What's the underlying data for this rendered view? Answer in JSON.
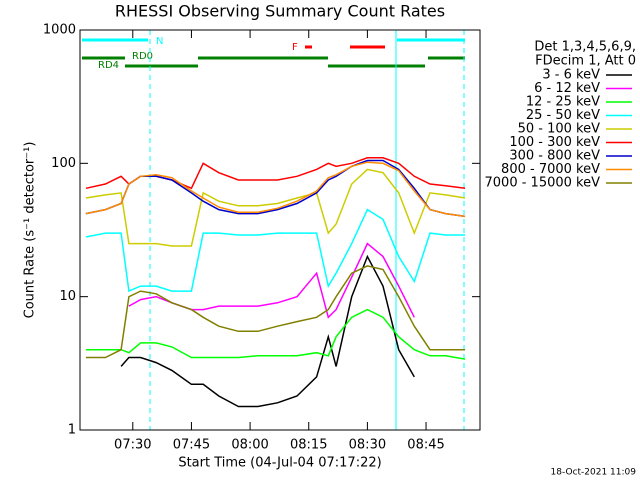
{
  "chart_data": {
    "type": "line",
    "title": "RHESSI Observing Summary Count Rates",
    "xlabel": "Start Time (04-Jul-04 07:17:22)",
    "ylabel": "Count Rate (s⁻¹ detector⁻¹)",
    "legend_title": [
      "Det 1,3,4,5,6,9,",
      "FDecim 1, Att 0"
    ],
    "timestamp": "18-Oct-2021 11:09",
    "flags": [
      "N",
      "RD0",
      "RD4",
      "F"
    ],
    "log_y": true,
    "xlim": [
      436.5,
      538.8
    ],
    "xticks": [
      {
        "value": 450,
        "label": "07:30"
      },
      {
        "value": 465,
        "label": "07:45"
      },
      {
        "value": 480,
        "label": "08:00"
      },
      {
        "value": 495,
        "label": "08:15"
      },
      {
        "value": 510,
        "label": "08:30"
      },
      {
        "value": 525,
        "label": "08:45"
      }
    ],
    "ylim": [
      1,
      1000
    ],
    "yticks": [
      1,
      10,
      100,
      1000
    ],
    "x": [
      438,
      443,
      447,
      449,
      452,
      456,
      460,
      465,
      468,
      472,
      477,
      482,
      487,
      492,
      497,
      500,
      502,
      506,
      510,
      514,
      518,
      522,
      526,
      530,
      535
    ],
    "series": [
      {
        "name": "3 - 6 keV",
        "color": "#000000",
        "values": [
          null,
          null,
          3,
          3.5,
          3.5,
          3.2,
          2.8,
          2.2,
          2.2,
          1.8,
          1.5,
          1.5,
          1.6,
          1.8,
          2.5,
          5,
          3,
          10,
          20,
          12,
          4,
          2.5,
          null,
          null,
          null
        ]
      },
      {
        "name": "6 - 12 keV",
        "color": "#ff00ff",
        "values": [
          null,
          null,
          null,
          8.5,
          9.5,
          10,
          9,
          8,
          8,
          8.5,
          8.5,
          8.5,
          9,
          10,
          15,
          7,
          8,
          14,
          25,
          20,
          12,
          7,
          null,
          null,
          null
        ]
      },
      {
        "name": "12 - 25 keV",
        "color": "#00ff00",
        "values": [
          4,
          4,
          4,
          3.8,
          4.5,
          4.5,
          4.2,
          3.5,
          3.5,
          3.5,
          3.5,
          3.6,
          3.6,
          3.6,
          3.8,
          3.6,
          5,
          7,
          8,
          7,
          5,
          4,
          3.6,
          3.6,
          3.4
        ]
      },
      {
        "name": "25 - 50 keV",
        "color": "#00ffff",
        "values": [
          28,
          30,
          30,
          11,
          12,
          12,
          11,
          11,
          30,
          30,
          29,
          29,
          30,
          30,
          30,
          12,
          15,
          25,
          45,
          38,
          20,
          13,
          30,
          29,
          29
        ]
      },
      {
        "name": "50 - 100 keV",
        "color": "#cccc00",
        "values": [
          55,
          58,
          60,
          25,
          25,
          25,
          24,
          24,
          60,
          52,
          48,
          48,
          50,
          55,
          60,
          30,
          35,
          70,
          90,
          85,
          60,
          30,
          60,
          58,
          55
        ]
      },
      {
        "name": "100 - 300 keV",
        "color": "#ff0000",
        "values": [
          65,
          70,
          80,
          70,
          80,
          80,
          75,
          65,
          100,
          85,
          75,
          75,
          75,
          80,
          90,
          100,
          95,
          100,
          110,
          110,
          100,
          80,
          70,
          68,
          65
        ]
      },
      {
        "name": "300 - 800 keV",
        "color": "#0000cc",
        "values": [
          42,
          45,
          50,
          70,
          80,
          80,
          75,
          60,
          52,
          45,
          42,
          42,
          45,
          50,
          60,
          75,
          80,
          95,
          105,
          105,
          90,
          65,
          45,
          42,
          40
        ]
      },
      {
        "name": "800 - 7000 keV",
        "color": "#ff8c00",
        "values": [
          42,
          45,
          50,
          70,
          80,
          82,
          78,
          62,
          55,
          47,
          43,
          43,
          46,
          52,
          62,
          78,
          82,
          95,
          102,
          100,
          88,
          62,
          45,
          42,
          40
        ]
      },
      {
        "name": "7000 - 15000 keV",
        "color": "#808000",
        "values": [
          3.5,
          3.5,
          4,
          10,
          11,
          10.5,
          9,
          8,
          7,
          6,
          5.5,
          5.5,
          6,
          6.5,
          7,
          8,
          10,
          15,
          17,
          16,
          10,
          6,
          4,
          4,
          4
        ]
      }
    ]
  }
}
